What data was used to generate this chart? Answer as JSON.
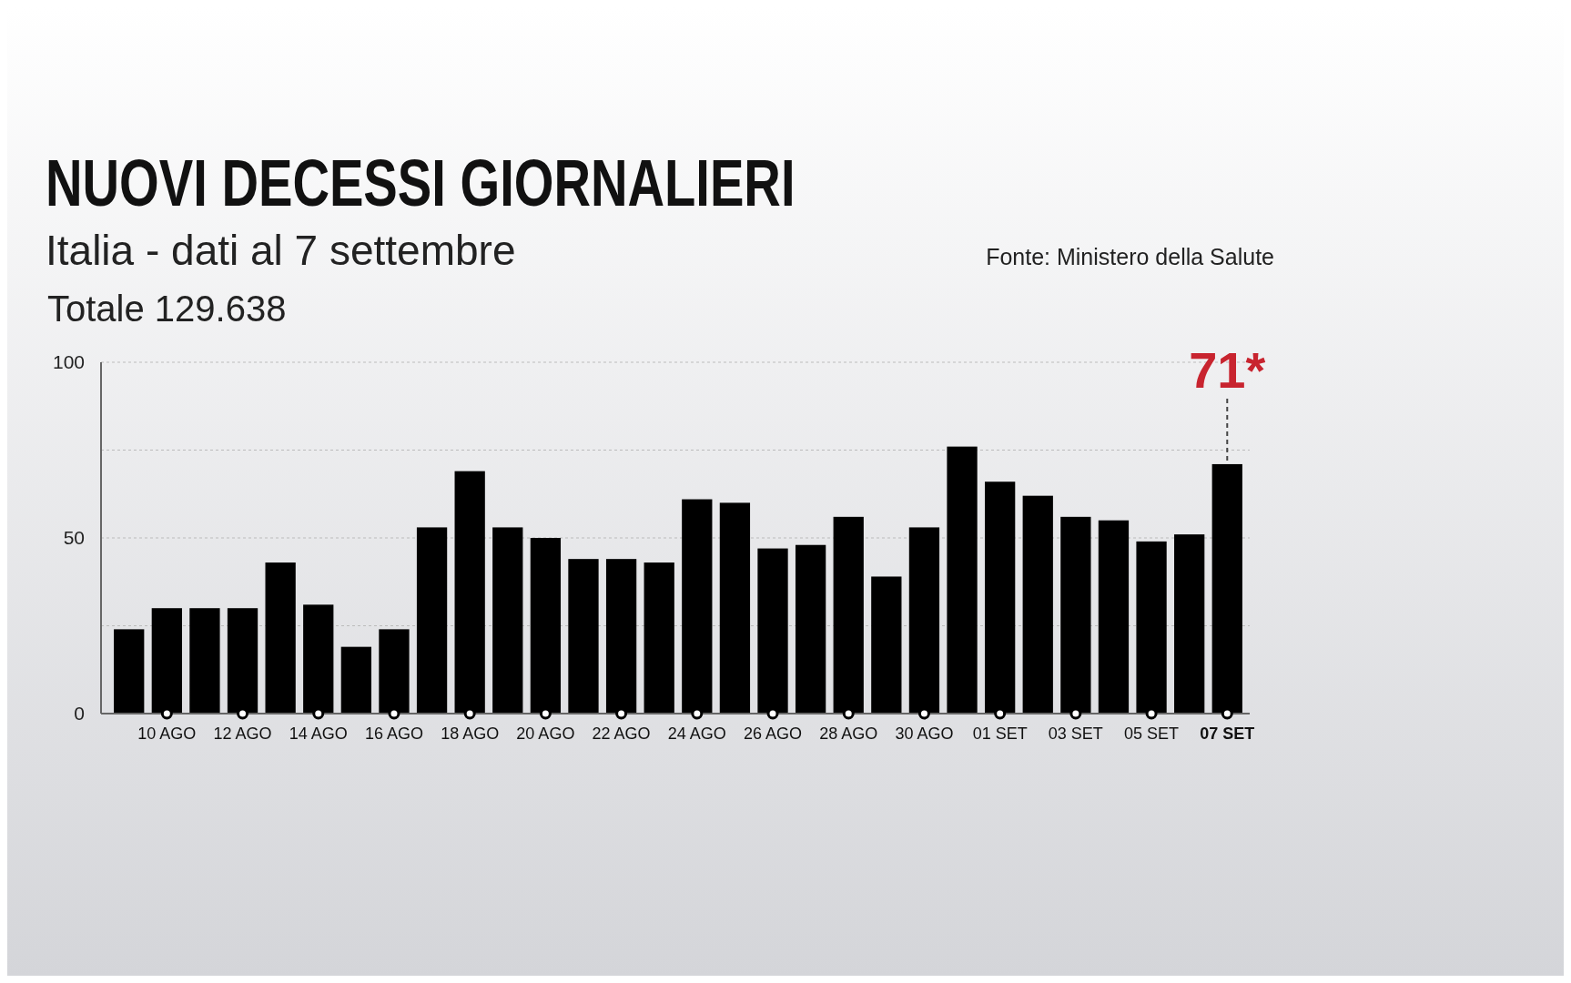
{
  "chart_data": {
    "type": "bar",
    "title": "NUOVI DECESSI GIORNALIERI",
    "subtitle": "Italia - dati al 7 settembre",
    "categories": [
      null,
      "10 AGO",
      null,
      "12 AGO",
      null,
      "14 AGO",
      null,
      "16 AGO",
      null,
      "18 AGO",
      null,
      "20 AGO",
      null,
      "22 AGO",
      null,
      "24 AGO",
      null,
      "26 AGO",
      null,
      "28 AGO",
      null,
      "30 AGO",
      null,
      "01 SET",
      null,
      "03 SET",
      null,
      "05 SET",
      null,
      "07 SET"
    ],
    "values": [
      24,
      30,
      30,
      30,
      43,
      31,
      19,
      24,
      53,
      69,
      53,
      50,
      44,
      44,
      43,
      61,
      60,
      47,
      48,
      56,
      39,
      53,
      76,
      66,
      62,
      56,
      55,
      49,
      51,
      71
    ],
    "color": "#000000",
    "ylim": [
      0,
      100
    ],
    "yticks": [
      0,
      {
        "value": 25,
        "label": null
      },
      50,
      {
        "value": 75,
        "label": null
      },
      100
    ],
    "grid": "y",
    "annotations": [
      "Totale 129.638",
      "Fonte: Ministero della Salute",
      {
        "text": "71*",
        "x": "07 SET",
        "y": 71
      }
    ]
  }
}
